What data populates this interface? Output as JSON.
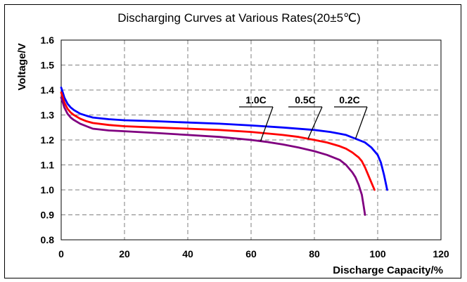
{
  "chart_data": {
    "type": "line",
    "title": "Discharging Curves at Various Rates(20±5℃)",
    "xlabel": "Discharge Capacity/%",
    "ylabel": "Voltage/V",
    "xlim": [
      0,
      120
    ],
    "ylim": [
      0.8,
      1.6
    ],
    "x_ticks": [
      0,
      20,
      40,
      60,
      80,
      100,
      120
    ],
    "x_tick_labels": [
      "0",
      "20",
      "40",
      "60",
      "80",
      "100",
      "120"
    ],
    "y_ticks": [
      0.8,
      0.9,
      1.0,
      1.1,
      1.2,
      1.3,
      1.4,
      1.5,
      1.6
    ],
    "y_tick_labels": [
      "0.8",
      "0.9",
      "1.0",
      "1.1",
      "1.2",
      "1.3",
      "1.4",
      "1.5",
      "1.6"
    ],
    "grid": true,
    "series": [
      {
        "name": "0.2C",
        "color": "#0000ff",
        "x": [
          0,
          0.5,
          1,
          2,
          3,
          4,
          6,
          8,
          10,
          15,
          20,
          30,
          40,
          50,
          60,
          70,
          80,
          85,
          88,
          90,
          92,
          94,
          96,
          98,
          100,
          101,
          102,
          102.5,
          103
        ],
        "y": [
          1.41,
          1.39,
          1.37,
          1.345,
          1.33,
          1.32,
          1.305,
          1.297,
          1.29,
          1.283,
          1.279,
          1.275,
          1.27,
          1.265,
          1.258,
          1.25,
          1.24,
          1.232,
          1.225,
          1.22,
          1.21,
          1.2,
          1.19,
          1.17,
          1.14,
          1.11,
          1.06,
          1.03,
          1.0
        ]
      },
      {
        "name": "0.5C",
        "color": "#ff0000",
        "x": [
          0,
          0.5,
          1,
          2,
          3,
          4,
          6,
          8,
          10,
          15,
          20,
          30,
          40,
          50,
          60,
          70,
          75,
          80,
          84,
          88,
          90,
          92,
          94,
          95,
          96,
          97,
          98,
          99
        ],
        "y": [
          1.39,
          1.37,
          1.35,
          1.325,
          1.31,
          1.3,
          1.285,
          1.275,
          1.268,
          1.26,
          1.255,
          1.25,
          1.245,
          1.24,
          1.232,
          1.22,
          1.212,
          1.2,
          1.19,
          1.175,
          1.165,
          1.15,
          1.13,
          1.115,
          1.09,
          1.06,
          1.03,
          1.0
        ]
      },
      {
        "name": "1.0C",
        "color": "#800080",
        "x": [
          0,
          0.5,
          1,
          2,
          3,
          4,
          6,
          8,
          10,
          15,
          20,
          30,
          40,
          50,
          60,
          65,
          70,
          75,
          80,
          84,
          88,
          90,
          92,
          93,
          94,
          95,
          95.5,
          96
        ],
        "y": [
          1.37,
          1.35,
          1.33,
          1.305,
          1.29,
          1.28,
          1.265,
          1.255,
          1.245,
          1.238,
          1.235,
          1.228,
          1.22,
          1.212,
          1.2,
          1.192,
          1.182,
          1.17,
          1.155,
          1.14,
          1.12,
          1.1,
          1.07,
          1.05,
          1.02,
          0.98,
          0.94,
          0.9
        ]
      }
    ]
  }
}
